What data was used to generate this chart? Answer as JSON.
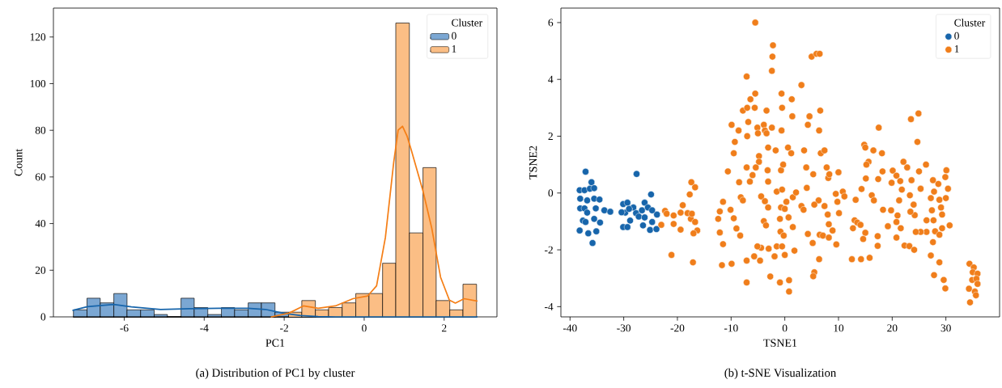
{
  "chart_data": [
    {
      "type": "histogram",
      "xlabel": "PC1",
      "ylabel": "Count",
      "legend_title": "Cluster",
      "legend": "top right",
      "annotations": [
        "(a) Distribution of PC1 by cluster"
      ],
      "xlim": [
        -7.77,
        3.32
      ],
      "ylim": [
        0,
        132.4
      ],
      "xticks": [
        -6,
        -4,
        -2,
        0,
        2
      ],
      "yticks": [
        0,
        20,
        40,
        60,
        80,
        100,
        120
      ],
      "bins": [
        -7.27,
        -6.93,
        -6.6,
        -6.26,
        -5.93,
        -5.59,
        -5.25,
        -4.92,
        -4.58,
        -4.25,
        -3.91,
        -3.57,
        -3.24,
        -2.9,
        -2.57,
        -2.23,
        -1.89,
        -1.56,
        -1.22,
        -0.89,
        -0.55,
        -0.21,
        0.12,
        0.46,
        0.79,
        1.13,
        1.47,
        1.8,
        2.14,
        2.47,
        2.81
      ],
      "series": [
        {
          "name": "0",
          "color": "#7ba7d3",
          "values": [
            3,
            8,
            6,
            10,
            3,
            3,
            1,
            0,
            8,
            4,
            1,
            4,
            3,
            6,
            6,
            2,
            0,
            0,
            0,
            0,
            0,
            0,
            0,
            0,
            0,
            0,
            0,
            0,
            0,
            0
          ]
        },
        {
          "name": "1",
          "color": "#fbbe85",
          "values": [
            0,
            0,
            0,
            0,
            0,
            0,
            0,
            0,
            0,
            0,
            0,
            0,
            0,
            0,
            0,
            0,
            2,
            7,
            3,
            4,
            6,
            10,
            10,
            23,
            126,
            36,
            64,
            7,
            3,
            14
          ]
        },
        {
          "type": "line",
          "color": "#1765ab",
          "x": [
            -7.28,
            -6.92,
            -6.26,
            -5.82,
            -5.09,
            -4.36,
            -3.64,
            -2.91,
            -2.47,
            -2.03,
            -1.59,
            -1.15,
            -0.72,
            2.82
          ],
          "values": [
            2.8,
            4.4,
            5.3,
            4.3,
            3.2,
            3.5,
            3.7,
            3.7,
            3.2,
            1.6,
            0.6,
            0.1,
            0,
            0
          ]
        },
        {
          "type": "line",
          "color": "#f57f17",
          "x": [
            -2.32,
            -1.88,
            -1.52,
            -1.15,
            -0.72,
            -0.28,
            0.09,
            0.31,
            0.53,
            0.74,
            0.85,
            0.96,
            1.07,
            1.18,
            1.47,
            1.69,
            1.91,
            2.13,
            2.28,
            2.5,
            2.82
          ],
          "values": [
            0,
            1.6,
            4.7,
            3.7,
            4.7,
            7.8,
            9,
            13.3,
            34,
            66.5,
            80.1,
            81.7,
            77.6,
            71.4,
            54,
            38,
            17,
            7.2,
            5.9,
            7.8,
            6.8
          ]
        }
      ]
    },
    {
      "type": "scatter",
      "xlabel": "TSNE1",
      "ylabel": "TSNE2",
      "legend_title": "Cluster",
      "legend": "top right",
      "marker": "circle",
      "annotations": [
        "(b) t-SNE Visualization"
      ],
      "xlim": [
        -41.7,
        40
      ],
      "ylim": [
        -4.36,
        6.51
      ],
      "xticks": [
        -40,
        -30,
        -20,
        -10,
        0,
        10,
        20,
        30
      ],
      "yticks": [
        -4,
        -2,
        0,
        2,
        4,
        6
      ],
      "series": [
        {
          "name": "0",
          "color": "#1765ab",
          "x": [
            -37.1,
            -27.6,
            -36.0,
            -38.2,
            -37.3,
            -36.3,
            -35.5,
            -38.1,
            -36.8,
            -35.5,
            -34.5,
            -38.1,
            -37.3,
            -35.2,
            -33.6,
            -32.5,
            -36.8,
            -37.6,
            -37.1,
            -35.5,
            -34.4,
            -38.2,
            -36.6,
            -35.1,
            -35.8,
            -30.1,
            -29.3,
            -29.7,
            -30.4,
            -28.2,
            -29.0,
            -27.7,
            -27.2,
            -28.8,
            -30.1,
            -29.3,
            -26.1,
            -24.9,
            -25.5,
            -24.7,
            -26.6,
            -26.1,
            -26.4,
            -25.1,
            -24.7,
            -23.9,
            -23.8
          ],
          "values": [
            0.75,
            0.67,
            0.38,
            0.1,
            0.1,
            0.15,
            0.17,
            -0.2,
            -0.26,
            -0.2,
            -0.23,
            -0.54,
            -0.54,
            -0.54,
            -0.61,
            -0.66,
            -0.69,
            -0.97,
            -1.02,
            -0.91,
            -1.04,
            -1.32,
            -1.42,
            -1.35,
            -1.76,
            -0.39,
            -0.34,
            -0.69,
            -0.68,
            -0.51,
            -0.56,
            -0.71,
            -0.83,
            -0.97,
            -1.2,
            -1.2,
            -0.34,
            -0.05,
            -0.51,
            -0.61,
            -0.61,
            -0.86,
            -1.14,
            -1.3,
            -1.02,
            -1.27,
            -0.76
          ]
        },
        {
          "name": "1",
          "color": "#f07e1b",
          "x": [
            -5.5,
            -2.2,
            -2.3,
            5.0,
            5.9,
            6.5,
            -2.4,
            -7.1,
            3.1,
            -5.5,
            -6.4,
            -0.6,
            1.3,
            -7.8,
            -7.0,
            -5.6,
            -3.4,
            -0.5,
            6.6,
            4.6,
            1.4,
            24.9,
            23.5,
            -9.9,
            -8.6,
            -6.8,
            -5.1,
            -3.9,
            -3.7,
            -3.4,
            -5.0,
            -2.4,
            -0.6,
            4.3,
            6.4,
            17.5,
            -7.0,
            -9.3,
            24.7,
            -9.5,
            -3.1,
            -1.7,
            0.6,
            1.2,
            3.6,
            6.7,
            7.4,
            14.8,
            15.0,
            16.5,
            18.1,
            -4.8,
            -4.8,
            15.6,
            15.2,
            22.1,
            26.3,
            -7.1,
            -5.4,
            -3.2,
            -0.7,
            4.0,
            7.8,
            22.8,
            30.1,
            -0.3,
            -23.0,
            -22.3,
            -22.0,
            -20.7,
            -20.7,
            -19.4,
            -19.0,
            -19.4,
            -18.1,
            -17.5,
            -17.3,
            -16.7,
            -16.3,
            -17.0,
            -17.4,
            -16.7,
            -17.7,
            -21.1,
            -17.1,
            -10.6,
            -12.4,
            -12.1,
            -11.5,
            -10.1,
            -9.5,
            -12.1,
            -11.5,
            -11.7,
            -9.9,
            -9.0,
            -8.3,
            -8.5,
            -8.2,
            -7.8,
            -6.5,
            -6.0,
            -3.1,
            -4.4,
            -3.7,
            -3.1,
            -3.9,
            -3.5,
            -4.4,
            -5.1,
            -5.7,
            -7.1,
            -4.6,
            -3.0,
            -1.9,
            -1.5,
            -0.5,
            0.0,
            1.8,
            -2.7,
            -7.1,
            -0.9,
            0.8,
            0.8,
            -1.5,
            -0.5,
            0.3,
            -0.7,
            0.0,
            1.5,
            2.1,
            -0.9,
            0.7,
            1.5,
            -0.8,
            -0.2,
            5.3,
            3.1,
            3.5,
            4.1,
            4.3,
            5.2,
            6.3,
            5.5,
            7.4,
            8.0,
            6.4,
            5.5,
            5.3,
            6.5,
            7.1,
            8.2,
            8.2,
            8.9,
            9.6,
            10.1,
            8.1,
            8.3,
            10.0,
            9.5,
            9.8,
            10.8,
            11.1,
            13.2,
            12.7,
            13.0,
            13.5,
            14.1,
            15.0,
            14.6,
            14.2,
            15.8,
            12.5,
            14.3,
            15.1,
            16.2,
            16.6,
            17.3,
            17.3,
            18.2,
            17.4,
            18.3,
            19.8,
            19.2,
            20.1,
            19.9,
            20.8,
            21.5,
            21.8,
            21.3,
            21.0,
            20.8,
            21.6,
            20.8,
            22.3,
            23.2,
            24.1,
            23.6,
            23.3,
            24.0,
            24.2,
            23.4,
            25.0,
            25.3,
            27.6,
            27.8,
            27.2,
            28.6,
            29.9,
            30.4,
            30.0,
            29.1,
            28.8,
            27.4,
            26.4,
            27.7,
            29.3,
            30.7,
            29.3,
            28.0,
            28.8,
            27.6,
            26.4,
            25.3,
            24.4,
            27.2,
            28.8,
            27.8,
            29.6,
            29.9,
            34.4,
            35.2,
            35.0,
            35.9,
            34.9,
            35.7,
            35.9,
            34.3,
            35.4,
            35.6,
            34.5
          ],
          "values": [
            6.0,
            5.2,
            4.8,
            4.8,
            4.9,
            4.9,
            4.3,
            4.1,
            3.8,
            3.5,
            3.3,
            3.5,
            3.3,
            2.9,
            3.0,
            3.0,
            2.9,
            3.0,
            2.9,
            2.7,
            2.7,
            2.8,
            2.6,
            2.4,
            2.2,
            2.5,
            2.3,
            2.4,
            2.2,
            2.1,
            2.1,
            2.3,
            2.2,
            2.4,
            2.2,
            2.3,
            2.0,
            1.8,
            1.8,
            1.4,
            1.6,
            1.5,
            1.6,
            1.4,
            1.5,
            1.4,
            1.5,
            1.7,
            1.6,
            1.5,
            1.4,
            1.3,
            1.1,
            1.1,
            1.0,
            1.1,
            1.0,
            0.9,
            0.9,
            0.8,
            0.8,
            0.9,
            0.9,
            0.9,
            0.8,
            1.0,
            -1.12,
            -0.63,
            -0.73,
            -0.79,
            -1.09,
            -1.29,
            -0.43,
            -0.69,
            -0.71,
            -0.91,
            -0.73,
            -1.02,
            -1.32,
            -1.42,
            0.38,
            0.2,
            -0.05,
            -2.18,
            -2.44,
            0.76,
            -0.91,
            -0.65,
            -0.31,
            -0.59,
            -0.89,
            -1.39,
            -1.8,
            -2.54,
            -2.49,
            -1.25,
            -1.5,
            0.38,
            -0.15,
            -0.26,
            0.4,
            0.63,
            0.4,
            -0.12,
            -0.29,
            -0.51,
            -0.99,
            -1.14,
            -1.93,
            -1.88,
            -2.23,
            -2.38,
            -2.38,
            -1.96,
            -2.23,
            -1.88,
            -1.88,
            -2.18,
            -2.03,
            -2.94,
            -3.15,
            -3.15,
            -3.07,
            -3.47,
            0.05,
            0.12,
            -0.31,
            -0.51,
            -0.56,
            -0.15,
            0.02,
            -0.91,
            -0.86,
            -1.2,
            -1.36,
            -1.5,
            0.66,
            -0.46,
            -0.59,
            0.18,
            -1.44,
            -1.76,
            -0.26,
            -0.41,
            -0.46,
            -0.76,
            -2.33,
            -2.79,
            -2.93,
            -1.47,
            -1.5,
            -1.57,
            -1.1,
            -1.32,
            -1.81,
            -0.71,
            0.53,
            0.66,
            0.73,
            -0.03,
            -0.31,
            0.05,
            -0.12,
            -0.24,
            -1.24,
            -0.96,
            -1.04,
            -1.12,
            -1.4,
            -1.62,
            -2.33,
            -2.28,
            -2.33,
            0.14,
            0.51,
            -0.08,
            -0.26,
            -1.52,
            -1.86,
            0.76,
            0.49,
            -0.59,
            -0.61,
            -1.17,
            0.79,
            0.36,
            0.61,
            0.42,
            0.12,
            -0.26,
            -0.79,
            -1.02,
            -1.24,
            -1.57,
            -1.85,
            -1.87,
            -2.0,
            0.45,
            -0.08,
            -0.41,
            -0.78,
            -0.66,
            0.76,
            0.15,
            0.45,
            0.05,
            -0.18,
            0.32,
            0.56,
            0.15,
            -0.18,
            -0.51,
            -0.24,
            -0.61,
            -0.96,
            -0.96,
            -0.76,
            -1.14,
            -1.24,
            -1.35,
            -1.47,
            -1.73,
            -1.37,
            -1.37,
            -1.37,
            -2.2,
            -2.44,
            -2.89,
            -3.06,
            -3.36,
            -2.49,
            -2.62,
            -2.79,
            -2.84,
            -3.06,
            -3.02,
            -3.2,
            -3.37,
            -3.47,
            -3.6,
            -3.85
          ]
        }
      ]
    }
  ]
}
